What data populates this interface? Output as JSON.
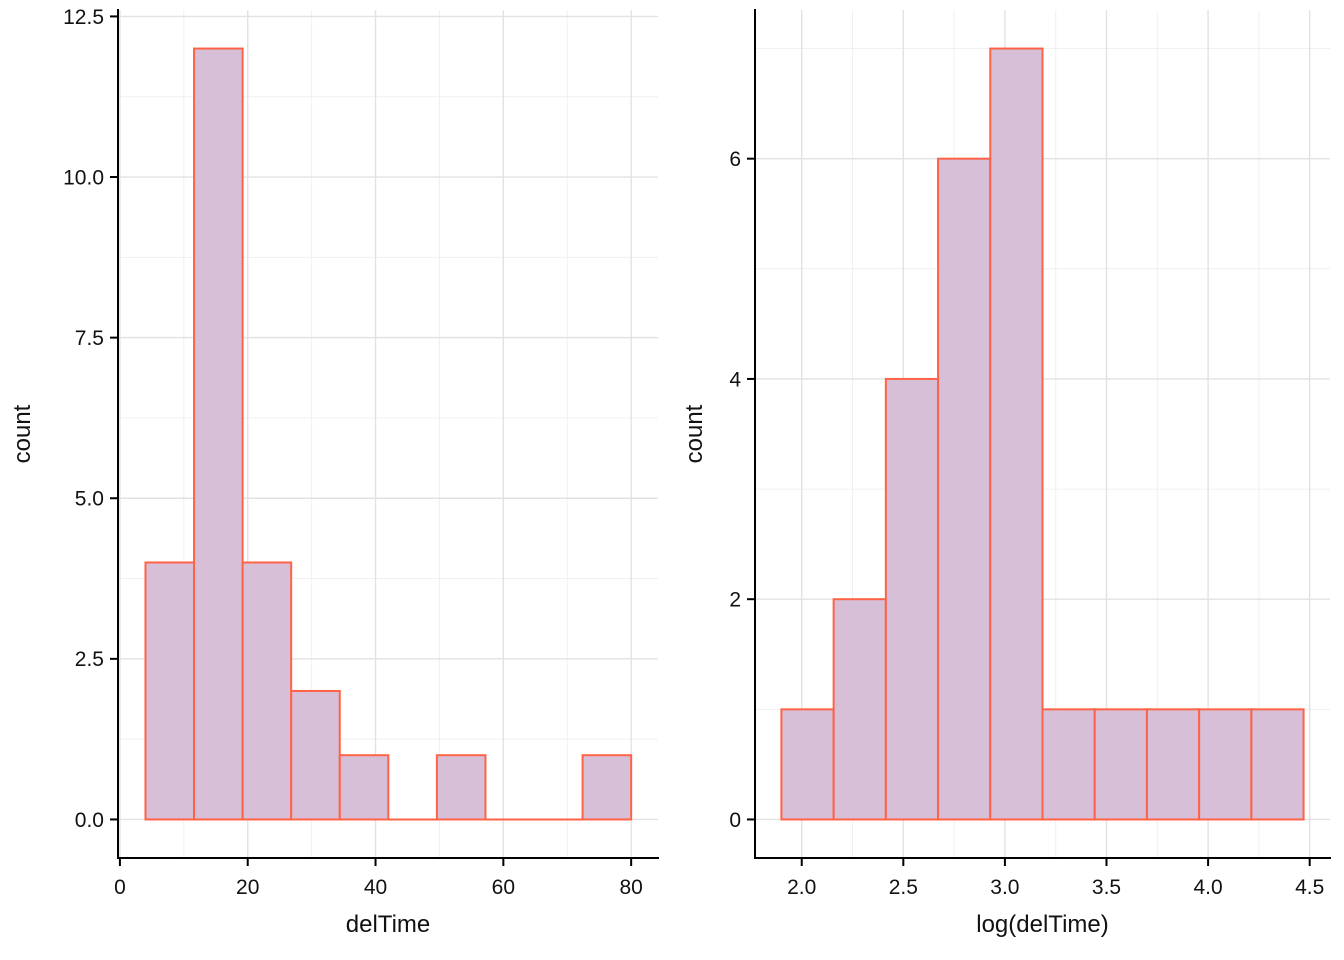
{
  "style": {
    "background": "#ffffff",
    "bar_fill": "#d8bfd8",
    "bar_stroke": "#ff6347",
    "grid_major": "#e2e2e2",
    "grid_minor": "#f0f0f0",
    "axis_color": "#000000",
    "text_color": "#111111"
  },
  "chart_data": [
    {
      "type": "bar",
      "subtype": "histogram",
      "title": "",
      "xlabel": "delTime",
      "ylabel": "count",
      "bin_edges": [
        4.0,
        11.6,
        19.2,
        26.8,
        34.4,
        42.0,
        49.6,
        57.2,
        64.8,
        72.4,
        80.0
      ],
      "counts": [
        4,
        12,
        4,
        2,
        1,
        0,
        1,
        0,
        0,
        1
      ],
      "x_tick_values": [
        0,
        20,
        40,
        60,
        80
      ],
      "x_tick_labels": [
        "0",
        "20",
        "40",
        "60",
        "80"
      ],
      "y_tick_values": [
        0,
        2.5,
        5,
        7.5,
        10,
        12.5
      ],
      "y_tick_labels": [
        "0.0",
        "2.5",
        "5.0",
        "7.5",
        "10.0",
        "12.5"
      ],
      "xlim": [
        -0.3,
        84.2
      ],
      "ylim": [
        -0.6,
        12.6
      ],
      "grid": true,
      "legend": false
    },
    {
      "type": "bar",
      "subtype": "histogram",
      "title": "",
      "xlabel": "log(delTime)",
      "ylabel": "count",
      "bin_edges": [
        1.9,
        2.157,
        2.414,
        2.671,
        2.928,
        3.185,
        3.442,
        3.699,
        3.956,
        4.213,
        4.47
      ],
      "counts": [
        1,
        2,
        4,
        6,
        7,
        1,
        1,
        1,
        1,
        1
      ],
      "x_tick_values": [
        2.0,
        2.5,
        3.0,
        3.5,
        4.0,
        4.5
      ],
      "x_tick_labels": [
        "2.0",
        "2.5",
        "3.0",
        "3.5",
        "4.0",
        "4.5"
      ],
      "y_tick_values": [
        0,
        2,
        4,
        6
      ],
      "y_tick_labels": [
        "0",
        "2",
        "4",
        "6"
      ],
      "xlim": [
        1.77,
        4.6
      ],
      "ylim": [
        -0.35,
        7.35
      ],
      "grid": true,
      "legend": false
    }
  ]
}
